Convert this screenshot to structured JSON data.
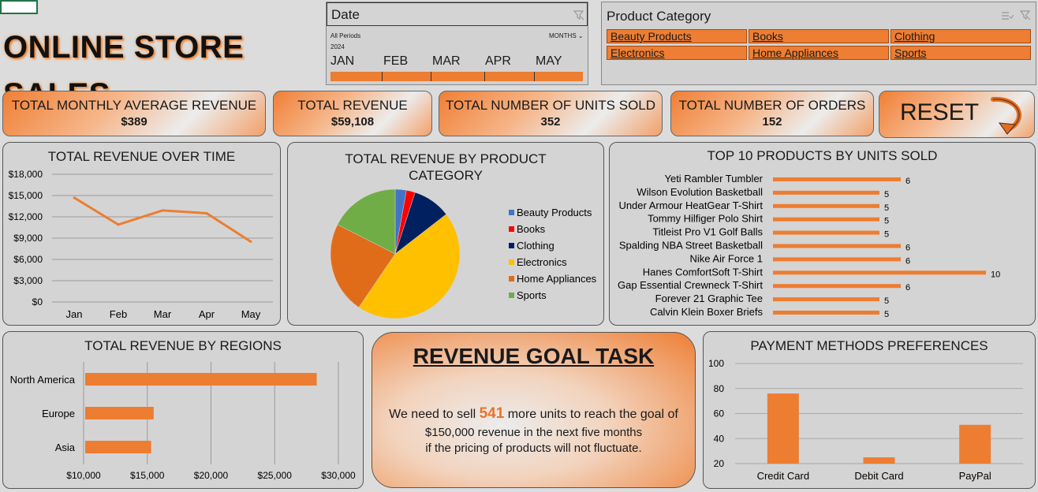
{
  "title": "ONLINE STORE SALES",
  "date_slicer": {
    "title": "Date",
    "all_periods": "All Periods",
    "unit": "MONTHS",
    "year": "2024",
    "months": [
      "JAN",
      "FEB",
      "MAR",
      "APR",
      "MAY"
    ]
  },
  "category_slicer": {
    "title": "Product Category",
    "items": [
      "Beauty Products",
      "Books",
      "Clothing",
      "Electronics",
      "Home Appliances",
      "Sports"
    ]
  },
  "kpis": [
    {
      "label": "TOTAL MONTHLY AVERAGE REVENUE",
      "value": "$389"
    },
    {
      "label": "TOTAL REVENUE",
      "value": "$59,108"
    },
    {
      "label": "TOTAL NUMBER OF UNITS SOLD",
      "value": "352"
    },
    {
      "label": "TOTAL NUMBER OF ORDERS",
      "value": "152"
    }
  ],
  "reset_label": "RESET",
  "colors": {
    "accent": "#ed7d31"
  },
  "revenue_goal": {
    "title": "REVENUE GOAL TASK",
    "line1_pre": "We need to sell ",
    "units": "541",
    "line1_post": " more units to reach the goal of",
    "line2": "$150,000 revenue in the next five months",
    "line3": "if the pricing of products will not fluctuate."
  },
  "chart_data": [
    {
      "type": "line",
      "title": "TOTAL REVENUE OVER TIME",
      "categories": [
        "Jan",
        "Feb",
        "Mar",
        "Apr",
        "May"
      ],
      "values": [
        14700,
        10900,
        12900,
        12500,
        8500
      ],
      "yticks": [
        "$0",
        "$3,000",
        "$6,000",
        "$9,000",
        "$12,000",
        "$15,000",
        "$18,000"
      ],
      "ylim": [
        0,
        18000
      ]
    },
    {
      "type": "pie",
      "title": "TOTAL REVENUE BY PRODUCT CATEGORY",
      "labels": [
        "Beauty Products",
        "Books",
        "Clothing",
        "Electronics",
        "Home Appliances",
        "Sports"
      ],
      "values": [
        2.8,
        2.2,
        9.5,
        45,
        23,
        17.5
      ],
      "colors": [
        "#4472c4",
        "#ff0000",
        "#002060",
        "#ffc000",
        "#e06c1a",
        "#70ad47"
      ]
    },
    {
      "type": "bar",
      "title": "TOP 10 PRODUCTS BY UNITS SOLD",
      "categories": [
        "Yeti Rambler Tumbler",
        "Wilson Evolution Basketball",
        "Under Armour HeatGear T-Shirt",
        "Tommy Hilfiger Polo Shirt",
        "Titleist Pro V1 Golf Balls",
        "Spalding NBA Street Basketball",
        "Nike Air Force 1",
        "Hanes ComfortSoft T-Shirt",
        "Gap Essential Crewneck T-Shirt",
        "Forever 21 Graphic Tee",
        "Calvin Klein Boxer Briefs"
      ],
      "values": [
        6,
        5,
        5,
        5,
        5,
        6,
        6,
        10,
        6,
        5,
        5
      ]
    },
    {
      "type": "bar",
      "title": "TOTAL REVENUE BY REGIONS",
      "categories": [
        "North America",
        "Europe",
        "Asia"
      ],
      "values": [
        28300,
        15500,
        15300
      ],
      "xticks": [
        "$10,000",
        "$15,000",
        "$20,000",
        "$25,000",
        "$30,000"
      ],
      "xlim": [
        10000,
        30000
      ]
    },
    {
      "type": "bar",
      "title": "PAYMENT METHODS PREFERENCES",
      "categories": [
        "Credit Card",
        "Debit Card",
        "PayPal"
      ],
      "values": [
        76,
        25,
        51
      ],
      "yticks": [
        "20",
        "40",
        "60",
        "80",
        "100"
      ],
      "ylim": [
        20,
        100
      ]
    }
  ]
}
